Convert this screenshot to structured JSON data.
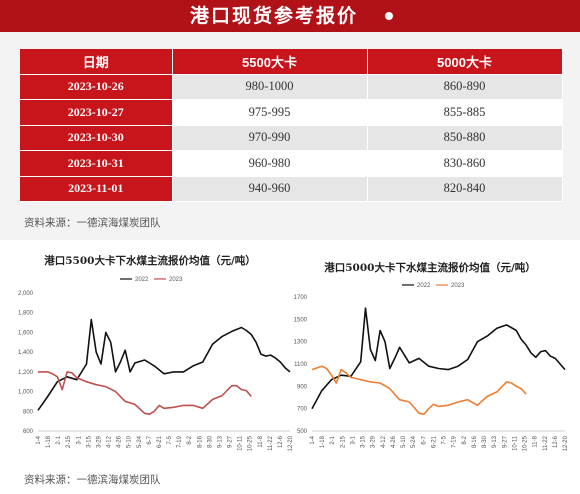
{
  "header": {
    "title": "港口现货参考报价"
  },
  "table": {
    "headers": [
      "日期",
      "5500大卡",
      "5000大卡"
    ],
    "rows": [
      {
        "date": "2023-10-26",
        "v5500": "980-1000",
        "v5000": "860-890"
      },
      {
        "date": "2023-10-27",
        "v5500": "975-995",
        "v5000": "855-885"
      },
      {
        "date": "2023-10-30",
        "v5500": "970-990",
        "v5000": "850-880"
      },
      {
        "date": "2023-10-31",
        "v5500": "960-980",
        "v5000": "830-860"
      },
      {
        "date": "2023-11-01",
        "v5500": "940-960",
        "v5000": "820-840"
      }
    ]
  },
  "source_top": "资料来源：一德滨海煤炭团队",
  "source_bottom": "资料来源：一德滨海煤炭团队",
  "colors": {
    "brand_red": "#b01218",
    "series_2022": "#111111",
    "series_2023_left": "#c0504d",
    "series_2023_right": "#ed7d31"
  },
  "chart_data": [
    {
      "type": "line",
      "title": "港口5500大卡下水煤主流报价均值（元/吨）",
      "ylim": [
        600,
        2000
      ],
      "yticks": [
        "2,000",
        "1,800",
        "1,600",
        "1,400",
        "1,200",
        "1,000",
        "800",
        "600"
      ],
      "xticks": [
        "1-4",
        "1-18",
        "2-1",
        "2-15",
        "3-1",
        "3-15",
        "3-29",
        "4-12",
        "4-26",
        "5-10",
        "5-24",
        "6-7",
        "6-21",
        "7-5",
        "7-19",
        "8-2",
        "8-16",
        "8-30",
        "9-13",
        "9-27",
        "10-11",
        "10-25",
        "11-8",
        "11-22",
        "12-6",
        "12-20"
      ],
      "x_range": [
        0,
        52
      ],
      "legend": [
        "2022",
        "2023"
      ],
      "series": [
        {
          "name": "2022",
          "x": [
            0,
            2,
            4,
            6,
            8,
            10,
            11,
            12,
            13,
            14,
            15,
            16,
            17,
            18,
            19,
            20,
            22,
            24,
            26,
            28,
            30,
            32,
            34,
            36,
            38,
            40,
            42,
            43,
            44,
            45,
            46,
            47,
            48,
            49,
            50,
            51,
            52
          ],
          "values": [
            810,
            950,
            1100,
            1150,
            1120,
            1280,
            1730,
            1400,
            1280,
            1600,
            1500,
            1200,
            1300,
            1420,
            1200,
            1290,
            1320,
            1260,
            1180,
            1200,
            1200,
            1260,
            1300,
            1480,
            1560,
            1610,
            1650,
            1620,
            1580,
            1500,
            1380,
            1360,
            1370,
            1340,
            1300,
            1240,
            1200
          ]
        },
        {
          "name": "2023",
          "x": [
            0,
            2,
            3,
            4,
            5,
            6,
            7,
            8,
            10,
            12,
            14,
            16,
            18,
            20,
            22,
            23,
            24,
            25,
            26,
            28,
            30,
            32,
            34,
            36,
            38,
            40,
            41,
            42,
            43,
            44
          ],
          "values": [
            1200,
            1200,
            1180,
            1150,
            1020,
            1200,
            1190,
            1140,
            1100,
            1070,
            1050,
            1000,
            900,
            870,
            780,
            770,
            800,
            860,
            830,
            840,
            860,
            860,
            830,
            920,
            960,
            1060,
            1060,
            1020,
            1010,
            950
          ]
        }
      ]
    },
    {
      "type": "line",
      "title": "港口5000大卡下水煤主流报价均值（元/吨）",
      "ylim": [
        500,
        1700
      ],
      "yticks": [
        "1700",
        "1500",
        "1300",
        "1100",
        "900",
        "700",
        "500"
      ],
      "xticks": [
        "1-4",
        "1-18",
        "2-1",
        "2-15",
        "3-1",
        "3-15",
        "3-29",
        "4-12",
        "4-26",
        "5-10",
        "5-24",
        "6-7",
        "6-21",
        "7-5",
        "7-19",
        "8-2",
        "8-16",
        "8-30",
        "9-13",
        "9-27",
        "10-11",
        "10-25",
        "11-8",
        "11-22",
        "12-6",
        "12-20"
      ],
      "x_range": [
        0,
        52
      ],
      "legend": [
        "2022",
        "2023"
      ],
      "series": [
        {
          "name": "2022",
          "x": [
            0,
            2,
            4,
            6,
            8,
            10,
            11,
            12,
            13,
            14,
            15,
            16,
            17,
            18,
            20,
            22,
            24,
            26,
            28,
            30,
            32,
            34,
            36,
            38,
            40,
            42,
            43,
            44,
            45,
            46,
            47,
            48,
            49,
            50,
            51,
            52
          ],
          "values": [
            700,
            860,
            960,
            1000,
            990,
            1120,
            1600,
            1230,
            1130,
            1400,
            1300,
            1060,
            1150,
            1250,
            1110,
            1150,
            1080,
            1060,
            1050,
            1080,
            1140,
            1300,
            1350,
            1420,
            1450,
            1400,
            1320,
            1270,
            1200,
            1160,
            1210,
            1220,
            1170,
            1150,
            1100,
            1050
          ]
        },
        {
          "name": "2023",
          "x": [
            0,
            2,
            3,
            4,
            5,
            6,
            7,
            8,
            10,
            12,
            14,
            16,
            18,
            20,
            22,
            23,
            24,
            25,
            26,
            28,
            30,
            32,
            34,
            36,
            38,
            40,
            41,
            42,
            43,
            44
          ],
          "values": [
            1050,
            1080,
            1060,
            1000,
            930,
            1050,
            1020,
            980,
            960,
            940,
            930,
            880,
            780,
            760,
            660,
            650,
            700,
            740,
            720,
            730,
            760,
            780,
            730,
            810,
            850,
            940,
            930,
            900,
            880,
            830
          ]
        }
      ]
    }
  ]
}
